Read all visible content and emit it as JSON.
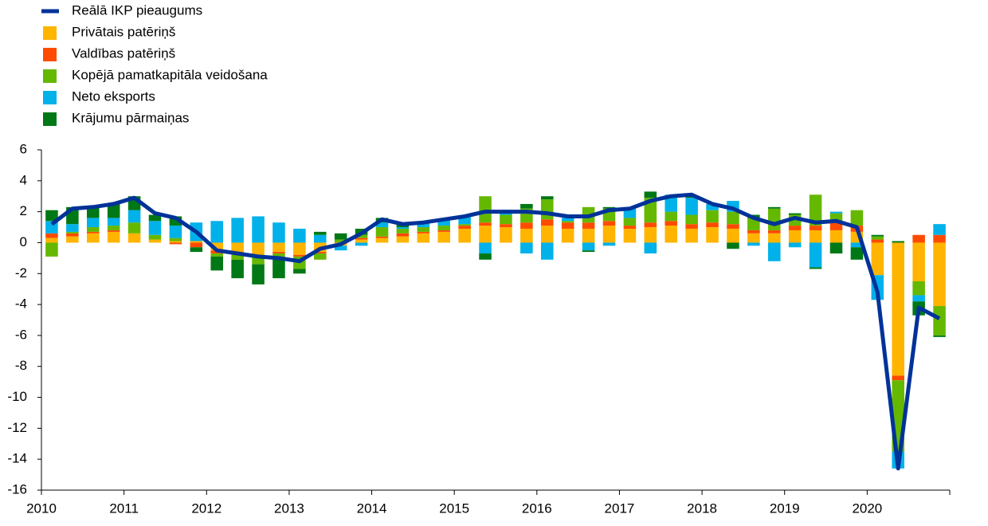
{
  "chart_data": {
    "type": "bar",
    "stacked": true,
    "categories": [
      "2010",
      null,
      null,
      null,
      "2011",
      null,
      null,
      null,
      "2012",
      null,
      null,
      null,
      "2013",
      null,
      null,
      null,
      "2014",
      null,
      null,
      null,
      "2015",
      null,
      null,
      null,
      "2016",
      null,
      null,
      null,
      "2017",
      null,
      null,
      null,
      "2018",
      null,
      null,
      null,
      "2019",
      null,
      null,
      null,
      "2020",
      null,
      null,
      null
    ],
    "series": [
      {
        "name": "Reālā IKP pieaugums",
        "type": "line",
        "color": "#003299",
        "values": [
          1.2,
          2.2,
          2.3,
          2.5,
          2.9,
          1.9,
          1.6,
          0.7,
          -0.5,
          -0.7,
          -0.9,
          -1.0,
          -1.2,
          -0.4,
          -0.1,
          0.6,
          1.5,
          1.2,
          1.3,
          1.5,
          1.7,
          2.0,
          2.0,
          2.0,
          1.9,
          1.7,
          1.7,
          2.1,
          2.2,
          2.7,
          3.0,
          3.1,
          2.5,
          2.2,
          1.6,
          1.2,
          1.6,
          1.3,
          1.4,
          1.0,
          -3.2,
          -14.6,
          -4.2,
          -4.9
        ]
      },
      {
        "name": "Privātais patēriņš",
        "color": "#ffb400",
        "values": [
          0.3,
          0.4,
          0.6,
          0.7,
          0.6,
          0.2,
          0.1,
          0.1,
          -0.5,
          -0.6,
          -0.8,
          -0.6,
          -0.8,
          -0.6,
          -0.2,
          0.2,
          0.3,
          0.4,
          0.6,
          0.7,
          0.9,
          1.1,
          1.0,
          0.9,
          1.1,
          0.9,
          0.9,
          1.1,
          0.9,
          1.0,
          1.1,
          0.9,
          1.0,
          0.9,
          0.6,
          0.6,
          0.8,
          0.8,
          0.8,
          0.7,
          -2.1,
          -8.6,
          -2.5,
          -4.1
        ]
      },
      {
        "name": "Valdības patēriņš",
        "color": "#ff4b00",
        "values": [
          0.3,
          0.2,
          0.1,
          0.1,
          0,
          0,
          -0.1,
          -0.3,
          -0.2,
          -0.1,
          -0.1,
          -0.1,
          -0.1,
          -0.1,
          0,
          0.1,
          0.1,
          0.2,
          0.1,
          0.1,
          0.2,
          0.2,
          0.2,
          0.4,
          0.4,
          0.4,
          0.4,
          0.3,
          0.2,
          0.3,
          0.3,
          0.3,
          0.3,
          0.3,
          0.2,
          0.2,
          0.3,
          0.3,
          0.5,
          0.4,
          0.2,
          -0.3,
          0.5,
          0.5
        ]
      },
      {
        "name": "Kopējā pamatkapitāla veidošana",
        "color": "#65b800",
        "values": [
          -0.9,
          0.1,
          0.3,
          0.3,
          0.7,
          0.3,
          0.2,
          0,
          -0.2,
          -0.4,
          -0.5,
          -0.4,
          -0.8,
          -0.4,
          0.2,
          0.2,
          0.6,
          0.3,
          0.3,
          0.3,
          0.1,
          1.7,
          0.6,
          0.9,
          1.3,
          0.1,
          1.0,
          0.8,
          0.5,
          1.6,
          0.6,
          0.6,
          0.8,
          0.8,
          0.8,
          1.4,
          0.7,
          2.0,
          0.6,
          1.0,
          0.2,
          -4.6,
          -0.9,
          -1.9
        ]
      },
      {
        "name": "Neto eksports",
        "color": "#00b1ea",
        "values": [
          0.8,
          0.5,
          0.6,
          0.5,
          0.8,
          0.9,
          0.8,
          1.2,
          1.4,
          1.6,
          1.7,
          1.3,
          0.9,
          0.5,
          -0.3,
          -0.2,
          0.3,
          0.1,
          0.3,
          0.4,
          0.5,
          -0.7,
          0.3,
          -0.7,
          -1.1,
          0.2,
          -0.5,
          -0.2,
          0.6,
          -0.7,
          1.1,
          1.1,
          0.4,
          0.7,
          -0.2,
          -1.2,
          -0.3,
          -1.6,
          0.1,
          -0.3,
          -1.6,
          -1.1,
          -0.4,
          0.7
        ]
      },
      {
        "name": "Krājumu pārmaiņas",
        "color": "#007816",
        "values": [
          0.7,
          1.1,
          0.7,
          0.9,
          0.9,
          0.4,
          0.6,
          -0.3,
          -0.9,
          -1.2,
          -1.3,
          -1.2,
          -0.3,
          0.2,
          0.4,
          0.4,
          0.3,
          0.3,
          0,
          0,
          0,
          -0.4,
          0,
          0.3,
          0.2,
          0,
          -0.1,
          0.1,
          0,
          0.4,
          0,
          0.1,
          0,
          -0.4,
          0.2,
          0.1,
          0.1,
          -0.1,
          -0.7,
          -0.8,
          0.1,
          0.1,
          -0.9,
          -0.1
        ]
      }
    ],
    "ylim": [
      -16,
      6
    ],
    "yticks": [
      -16,
      -14,
      -12,
      -10,
      -8,
      -6,
      -4,
      -2,
      0,
      2,
      4,
      6
    ],
    "grid": false
  }
}
